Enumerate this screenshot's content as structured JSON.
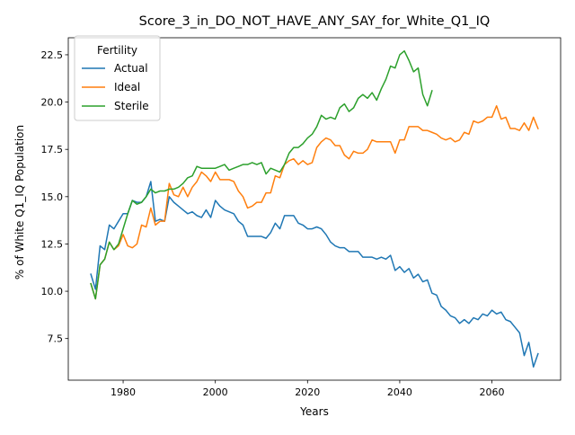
{
  "chart_data": {
    "type": "line",
    "title": "Score_3_in_DO_NOT_HAVE_ANY_SAY_for_White_Q1_IQ",
    "xlabel": "Years",
    "ylabel": "% of White Q1_IQ Population",
    "xlim": [
      1968.1,
      2074.9
    ],
    "ylim": [
      5.3,
      23.4
    ],
    "x_ticks": [
      1980,
      2000,
      2020,
      2040,
      2060
    ],
    "y_ticks": [
      7.5,
      10.0,
      12.5,
      15.0,
      17.5,
      20.0,
      22.5
    ],
    "x_tick_labels": [
      "1980",
      "2000",
      "2020",
      "2040",
      "2060"
    ],
    "y_tick_labels": [
      "7.5",
      "10.0",
      "12.5",
      "15.0",
      "17.5",
      "20.0",
      "22.5"
    ],
    "grid": false,
    "legend": {
      "title": "Fertility",
      "placement": "top-left"
    },
    "series": [
      {
        "name": "Actual",
        "color": "#1f77b4",
        "x": [
          1973,
          1974,
          1975,
          1976,
          1977,
          1978,
          1979,
          1980,
          1981,
          1982,
          1983,
          1984,
          1985,
          1986,
          1987,
          1988,
          1989,
          1990,
          1991,
          1992,
          1993,
          1994,
          1995,
          1996,
          1997,
          1998,
          1999,
          2000,
          2001,
          2002,
          2003,
          2004,
          2005,
          2006,
          2007,
          2008,
          2009,
          2010,
          2011,
          2012,
          2013,
          2014,
          2015,
          2016,
          2017,
          2018,
          2019,
          2020,
          2021,
          2022,
          2023,
          2024,
          2025,
          2026,
          2027,
          2028,
          2029,
          2030,
          2031,
          2032,
          2033,
          2034,
          2035,
          2036,
          2037,
          2038,
          2039,
          2040,
          2041,
          2042,
          2043,
          2044,
          2045,
          2046,
          2047,
          2048,
          2049,
          2050,
          2051,
          2052,
          2053,
          2054,
          2055,
          2056,
          2057,
          2058,
          2059,
          2060,
          2061,
          2062,
          2063,
          2064,
          2065,
          2066,
          2067,
          2068,
          2069,
          2070
        ],
        "y": [
          10.9,
          10.1,
          12.4,
          12.2,
          13.5,
          13.3,
          13.7,
          14.1,
          14.1,
          14.8,
          14.7,
          14.7,
          15.0,
          15.8,
          13.7,
          13.8,
          13.7,
          15.0,
          14.7,
          14.5,
          14.3,
          14.1,
          14.2,
          14.0,
          13.9,
          14.3,
          13.9,
          14.8,
          14.5,
          14.3,
          14.2,
          14.1,
          13.7,
          13.5,
          12.9,
          12.9,
          12.9,
          12.9,
          12.8,
          13.1,
          13.6,
          13.3,
          14.0,
          14.0,
          14.0,
          13.6,
          13.5,
          13.3,
          13.3,
          13.4,
          13.3,
          13.0,
          12.6,
          12.4,
          12.3,
          12.3,
          12.1,
          12.1,
          12.1,
          11.8,
          11.8,
          11.8,
          11.7,
          11.8,
          11.7,
          11.9,
          11.1,
          11.3,
          11.0,
          11.2,
          10.7,
          10.9,
          10.5,
          10.6,
          9.9,
          9.8,
          9.2,
          9.0,
          8.7,
          8.6,
          8.3,
          8.5,
          8.3,
          8.6,
          8.5,
          8.8,
          8.7,
          9.0,
          8.8,
          8.9,
          8.5,
          8.4,
          8.1,
          7.8,
          6.6,
          7.3,
          6.0,
          6.7
        ]
      },
      {
        "name": "Ideal",
        "color": "#ff7f0e",
        "x": [
          1973,
          1974,
          1975,
          1976,
          1977,
          1978,
          1979,
          1980,
          1981,
          1982,
          1983,
          1984,
          1985,
          1986,
          1987,
          1988,
          1989,
          1990,
          1991,
          1992,
          1993,
          1994,
          1995,
          1996,
          1997,
          1998,
          1999,
          2000,
          2001,
          2002,
          2003,
          2004,
          2005,
          2006,
          2007,
          2008,
          2009,
          2010,
          2011,
          2012,
          2013,
          2014,
          2015,
          2016,
          2017,
          2018,
          2019,
          2020,
          2021,
          2022,
          2023,
          2024,
          2025,
          2026,
          2027,
          2028,
          2029,
          2030,
          2031,
          2032,
          2033,
          2034,
          2035,
          2036,
          2037,
          2038,
          2039,
          2040,
          2041,
          2042,
          2043,
          2044,
          2045,
          2046,
          2047,
          2048,
          2049,
          2050,
          2051,
          2052,
          2053,
          2054,
          2055,
          2056,
          2057,
          2058,
          2059,
          2060,
          2061,
          2062,
          2063,
          2064,
          2065,
          2066,
          2067,
          2068,
          2069,
          2070
        ],
        "y": [
          10.4,
          9.6,
          11.4,
          11.7,
          12.6,
          12.2,
          12.4,
          13.0,
          12.4,
          12.3,
          12.5,
          13.5,
          13.4,
          14.4,
          13.5,
          13.7,
          13.7,
          15.7,
          15.1,
          15.0,
          15.5,
          15.0,
          15.5,
          15.8,
          16.3,
          16.1,
          15.8,
          16.3,
          15.9,
          15.9,
          15.9,
          15.8,
          15.3,
          15.0,
          14.4,
          14.5,
          14.7,
          14.7,
          15.2,
          15.2,
          16.1,
          16.0,
          16.7,
          16.9,
          17.0,
          16.7,
          16.9,
          16.7,
          16.8,
          17.6,
          17.9,
          18.1,
          18.0,
          17.7,
          17.7,
          17.2,
          17.0,
          17.4,
          17.3,
          17.3,
          17.5,
          18.0,
          17.9,
          17.9,
          17.9,
          17.9,
          17.3,
          18.0,
          18.0,
          18.7,
          18.7,
          18.7,
          18.5,
          18.5,
          18.4,
          18.3,
          18.1,
          18.0,
          18.1,
          17.9,
          18.0,
          18.4,
          18.3,
          19.0,
          18.9,
          19.0,
          19.2,
          19.2,
          19.8,
          19.1,
          19.2,
          18.6,
          18.6,
          18.5,
          18.9,
          18.5,
          19.2,
          18.6
        ]
      },
      {
        "name": "Sterile",
        "color": "#2ca02c",
        "x": [
          1973,
          1974,
          1975,
          1976,
          1977,
          1978,
          1979,
          1980,
          1981,
          1982,
          1983,
          1984,
          1985,
          1986,
          1987,
          1988,
          1989,
          1990,
          1991,
          1992,
          1993,
          1994,
          1995,
          1996,
          1997,
          1998,
          1999,
          2000,
          2001,
          2002,
          2003,
          2004,
          2005,
          2006,
          2007,
          2008,
          2009,
          2010,
          2011,
          2012,
          2013,
          2014,
          2015,
          2016,
          2017,
          2018,
          2019,
          2020,
          2021,
          2022,
          2023,
          2024,
          2025,
          2026,
          2027,
          2028,
          2029,
          2030,
          2031,
          2032,
          2033,
          2034,
          2035,
          2036,
          2037,
          2038,
          2039,
          2040,
          2041,
          2042,
          2043,
          2044,
          2045,
          2046,
          2047
        ],
        "y": [
          10.4,
          9.6,
          11.4,
          11.7,
          12.6,
          12.2,
          12.5,
          13.3,
          14.1,
          14.8,
          14.6,
          14.7,
          15.0,
          15.4,
          15.2,
          15.3,
          15.3,
          15.4,
          15.4,
          15.5,
          15.7,
          16.0,
          16.1,
          16.6,
          16.5,
          16.5,
          16.5,
          16.5,
          16.6,
          16.7,
          16.4,
          16.5,
          16.6,
          16.7,
          16.7,
          16.8,
          16.7,
          16.8,
          16.2,
          16.5,
          16.4,
          16.3,
          16.7,
          17.3,
          17.6,
          17.6,
          17.8,
          18.1,
          18.3,
          18.7,
          19.3,
          19.1,
          19.2,
          19.1,
          19.7,
          19.9,
          19.5,
          19.7,
          20.2,
          20.4,
          20.2,
          20.5,
          20.1,
          20.7,
          21.2,
          21.9,
          21.8,
          22.5,
          22.7,
          22.2,
          21.6,
          21.8,
          20.4,
          19.8,
          20.6
        ]
      }
    ]
  }
}
